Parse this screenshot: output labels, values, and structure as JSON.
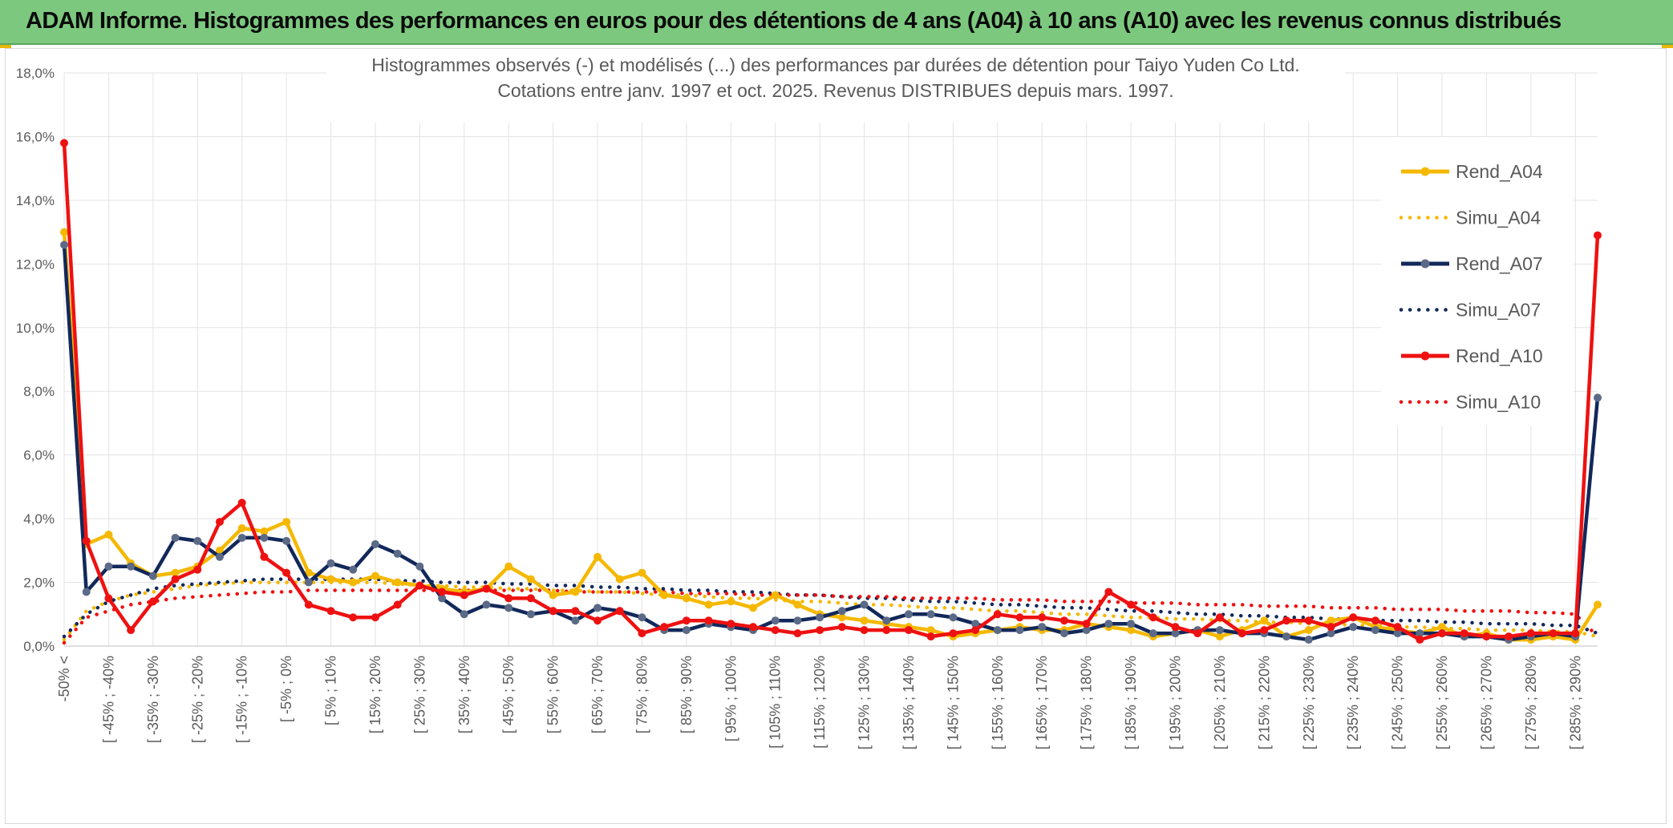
{
  "header": {
    "banner_title": "ADAM Informe. Histogrammes des performances en euros pour des détentions de 4 ans (A04) à 10 ans (A10) avec les revenus connus distribués"
  },
  "colors": {
    "banner_bg": "#7dc87f",
    "A04": "#f5b800",
    "A07": "#12285a",
    "A07_marker": "#5b6a86",
    "A10": "#ee1111"
  },
  "chart_data": {
    "type": "line",
    "title": "Histogrammes observés (-) et modélisés (...) des performances par durées de détention pour Taiyo Yuden Co Ltd.",
    "subtitle": "Cotations entre janv. 1997 et oct. 2025. Revenus DISTRIBUES depuis mars. 1997.",
    "ylim": [
      0,
      18
    ],
    "y_unit": "%",
    "yticks": [
      "0,0%",
      "2,0%",
      "4,0%",
      "6,0%",
      "8,0%",
      "10,0%",
      "12,0%",
      "14,0%",
      "16,0%",
      "18,0%"
    ],
    "grid": "vertical and horizontal",
    "legend_position": "right",
    "category_count": 70,
    "category_labels": [
      "-50% <",
      "[ -45% ; -40%",
      "[ -35% ; -30%",
      "[ -25% ; -20%",
      "[ -15% ; -10%",
      "[ -5% ; 0%",
      "[ 5% ; 10%",
      "[ 15% ; 20%",
      "[ 25% ; 30%",
      "[ 35% ; 40%",
      "[ 45% ; 50%",
      "[ 55% ; 60%",
      "[ 65% ; 70%",
      "[ 75% ; 80%",
      "[ 85% ; 90%",
      "[ 95% ; 100%",
      "[ 105% ; 110%",
      "[ 115% ; 120%",
      "[ 125% ; 130%",
      "[ 135% ; 140%",
      "[ 145% ; 150%",
      "[ 155% ; 160%",
      "[ 165% ; 170%",
      "[ 175% ; 180%",
      "[ 185% ; 190%",
      "[ 195% ; 200%",
      "[ 205% ; 210%",
      "[ 215% ; 220%",
      "[ 225% ; 230%",
      "[ 235% ; 240%",
      "[ 245% ; 250%",
      "[ 255% ; 260%",
      "[ 265% ; 270%",
      "[ 275% ; 280%",
      "[ 285% ; 290%"
    ],
    "label_every": 2,
    "series": [
      {
        "name": "Rend_A04",
        "style": "solid",
        "color_key": "A04",
        "values": [
          13.0,
          3.2,
          3.5,
          2.6,
          2.2,
          2.3,
          2.5,
          3.0,
          3.7,
          3.6,
          3.9,
          2.3,
          2.1,
          2.0,
          2.2,
          2.0,
          1.9,
          1.8,
          1.7,
          1.8,
          2.5,
          2.1,
          1.6,
          1.7,
          2.8,
          2.1,
          2.3,
          1.6,
          1.5,
          1.3,
          1.4,
          1.2,
          1.6,
          1.3,
          1.0,
          0.9,
          0.8,
          0.7,
          0.6,
          0.5,
          0.3,
          0.4,
          0.5,
          0.6,
          0.5,
          0.5,
          0.7,
          0.6,
          0.5,
          0.3,
          0.4,
          0.5,
          0.3,
          0.5,
          0.8,
          0.3,
          0.5,
          0.8,
          0.9,
          0.6,
          0.5,
          0.4,
          0.6,
          0.3,
          0.4,
          0.2,
          0.2,
          0.3,
          0.2,
          1.3
        ]
      },
      {
        "name": "Simu_A04",
        "style": "dotted",
        "color_key": "A04",
        "values": [
          0.2,
          1.1,
          1.4,
          1.6,
          1.7,
          1.8,
          1.9,
          1.95,
          2.0,
          2.0,
          2.0,
          2.0,
          2.0,
          2.0,
          2.0,
          1.95,
          1.9,
          1.9,
          1.85,
          1.85,
          1.8,
          1.8,
          1.75,
          1.75,
          1.7,
          1.7,
          1.65,
          1.6,
          1.6,
          1.55,
          1.5,
          1.5,
          1.45,
          1.4,
          1.4,
          1.35,
          1.3,
          1.3,
          1.25,
          1.2,
          1.2,
          1.15,
          1.1,
          1.1,
          1.05,
          1.0,
          1.0,
          0.95,
          0.9,
          0.9,
          0.85,
          0.85,
          0.8,
          0.8,
          0.75,
          0.75,
          0.7,
          0.7,
          0.65,
          0.65,
          0.6,
          0.6,
          0.55,
          0.55,
          0.5,
          0.5,
          0.5,
          0.45,
          0.45,
          0.3
        ]
      },
      {
        "name": "Rend_A07",
        "style": "solid",
        "color_key": "A07",
        "values": [
          12.6,
          1.7,
          2.5,
          2.5,
          2.2,
          3.4,
          3.3,
          2.8,
          3.4,
          3.4,
          3.3,
          2.0,
          2.6,
          2.4,
          3.2,
          2.9,
          2.5,
          1.5,
          1.0,
          1.3,
          1.2,
          1.0,
          1.1,
          0.8,
          1.2,
          1.1,
          0.9,
          0.5,
          0.5,
          0.7,
          0.6,
          0.5,
          0.8,
          0.8,
          0.9,
          1.1,
          1.3,
          0.8,
          1.0,
          1.0,
          0.9,
          0.7,
          0.5,
          0.5,
          0.6,
          0.4,
          0.5,
          0.7,
          0.7,
          0.4,
          0.4,
          0.5,
          0.5,
          0.4,
          0.4,
          0.3,
          0.2,
          0.4,
          0.6,
          0.5,
          0.4,
          0.4,
          0.4,
          0.3,
          0.3,
          0.2,
          0.3,
          0.4,
          0.3,
          7.8
        ]
      },
      {
        "name": "Simu_A07",
        "style": "dotted",
        "color_key": "A07",
        "values": [
          0.3,
          1.0,
          1.4,
          1.6,
          1.8,
          1.9,
          1.95,
          2.0,
          2.05,
          2.1,
          2.1,
          2.1,
          2.1,
          2.1,
          2.1,
          2.05,
          2.05,
          2.0,
          2.0,
          2.0,
          1.95,
          1.95,
          1.9,
          1.9,
          1.85,
          1.85,
          1.8,
          1.8,
          1.75,
          1.75,
          1.7,
          1.7,
          1.65,
          1.6,
          1.6,
          1.55,
          1.5,
          1.5,
          1.45,
          1.4,
          1.4,
          1.35,
          1.3,
          1.3,
          1.25,
          1.2,
          1.2,
          1.15,
          1.1,
          1.1,
          1.05,
          1.0,
          1.0,
          0.95,
          0.95,
          0.9,
          0.9,
          0.85,
          0.85,
          0.8,
          0.8,
          0.8,
          0.75,
          0.75,
          0.7,
          0.7,
          0.7,
          0.65,
          0.65,
          0.4
        ]
      },
      {
        "name": "Rend_A10",
        "style": "solid",
        "color_key": "A10",
        "values": [
          15.8,
          3.3,
          1.5,
          0.5,
          1.4,
          2.1,
          2.4,
          3.9,
          4.5,
          2.8,
          2.3,
          1.3,
          1.1,
          0.9,
          0.9,
          1.3,
          1.9,
          1.7,
          1.6,
          1.8,
          1.5,
          1.5,
          1.1,
          1.1,
          0.8,
          1.1,
          0.4,
          0.6,
          0.8,
          0.8,
          0.7,
          0.6,
          0.5,
          0.4,
          0.5,
          0.6,
          0.5,
          0.5,
          0.5,
          0.3,
          0.4,
          0.5,
          1.0,
          0.9,
          0.9,
          0.8,
          0.7,
          1.7,
          1.3,
          0.9,
          0.6,
          0.4,
          0.9,
          0.4,
          0.5,
          0.8,
          0.8,
          0.6,
          0.9,
          0.8,
          0.6,
          0.2,
          0.4,
          0.4,
          0.3,
          0.3,
          0.4,
          0.4,
          0.4,
          12.9
        ]
      },
      {
        "name": "Simu_A10",
        "style": "dotted",
        "color_key": "A10",
        "values": [
          0.1,
          0.9,
          1.1,
          1.3,
          1.4,
          1.5,
          1.55,
          1.6,
          1.65,
          1.7,
          1.7,
          1.75,
          1.75,
          1.75,
          1.75,
          1.75,
          1.75,
          1.75,
          1.75,
          1.75,
          1.75,
          1.75,
          1.75,
          1.7,
          1.7,
          1.7,
          1.7,
          1.7,
          1.65,
          1.65,
          1.65,
          1.6,
          1.6,
          1.6,
          1.6,
          1.55,
          1.55,
          1.55,
          1.5,
          1.5,
          1.5,
          1.5,
          1.45,
          1.45,
          1.45,
          1.4,
          1.4,
          1.4,
          1.35,
          1.35,
          1.35,
          1.3,
          1.3,
          1.3,
          1.25,
          1.25,
          1.25,
          1.2,
          1.2,
          1.2,
          1.15,
          1.15,
          1.15,
          1.1,
          1.1,
          1.1,
          1.05,
          1.05,
          1.0,
          0.3
        ]
      }
    ]
  }
}
